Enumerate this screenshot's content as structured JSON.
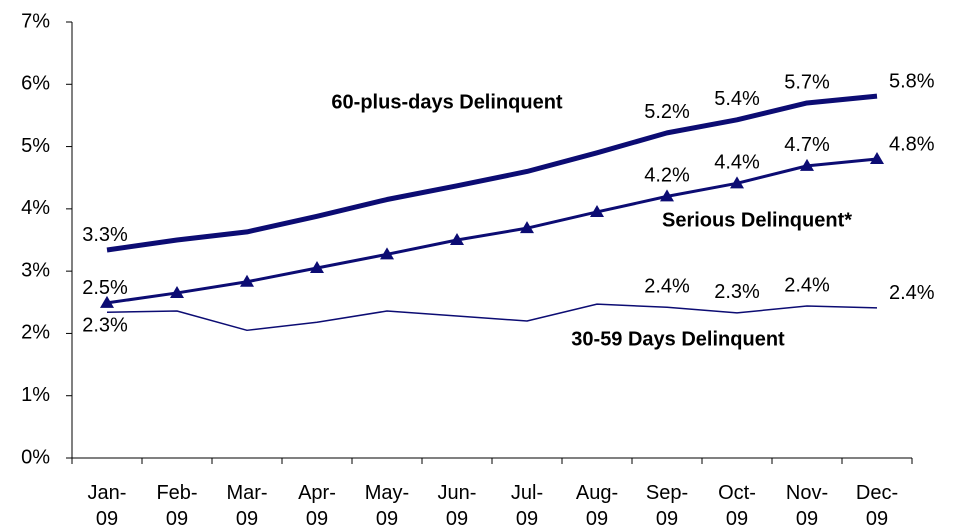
{
  "chart_data": {
    "type": "line",
    "categories": [
      "Jan-09",
      "Feb-09",
      "Mar-09",
      "Apr-09",
      "May-09",
      "Jun-09",
      "Jul-09",
      "Aug-09",
      "Sep-09",
      "Oct-09",
      "Nov-09",
      "Dec-09"
    ],
    "ylim": [
      0,
      7
    ],
    "yticks": [
      {
        "value": 0,
        "label": "0%"
      },
      {
        "value": 1,
        "label": "1%"
      },
      {
        "value": 2,
        "label": "2%"
      },
      {
        "value": 3,
        "label": "3%"
      },
      {
        "value": 4,
        "label": "4%"
      },
      {
        "value": 5,
        "label": "5%"
      },
      {
        "value": 6,
        "label": "6%"
      },
      {
        "value": 7,
        "label": "7%"
      }
    ],
    "grid": false,
    "series": [
      {
        "name": "60-plus-days Delinquent",
        "color": "#0c0c73",
        "values": [
          3.34,
          3.5,
          3.63,
          3.88,
          4.15,
          4.37,
          4.6,
          4.9,
          5.22,
          5.43,
          5.7,
          5.81
        ],
        "value_labels": [
          "3.3%",
          null,
          null,
          null,
          null,
          null,
          null,
          null,
          "5.2%",
          "5.4%",
          "5.7%",
          "5.8%"
        ]
      },
      {
        "name": "Serious Delinquent*",
        "color": "#0c0c73",
        "values": [
          2.49,
          2.65,
          2.83,
          3.05,
          3.27,
          3.5,
          3.69,
          3.95,
          4.2,
          4.41,
          4.69,
          4.8
        ],
        "value_labels": [
          "2.5%",
          null,
          null,
          null,
          null,
          null,
          null,
          null,
          "4.2%",
          "4.4%",
          "4.7%",
          "4.8%"
        ]
      },
      {
        "name": "30-59 Days Delinquent",
        "color": "#0c0c73",
        "values": [
          2.34,
          2.36,
          2.05,
          2.18,
          2.36,
          2.28,
          2.2,
          2.47,
          2.42,
          2.33,
          2.44,
          2.41
        ],
        "value_labels": [
          "2.3%",
          null,
          null,
          null,
          null,
          null,
          null,
          null,
          "2.4%",
          "2.3%",
          "2.4%",
          "2.4%"
        ]
      }
    ]
  }
}
